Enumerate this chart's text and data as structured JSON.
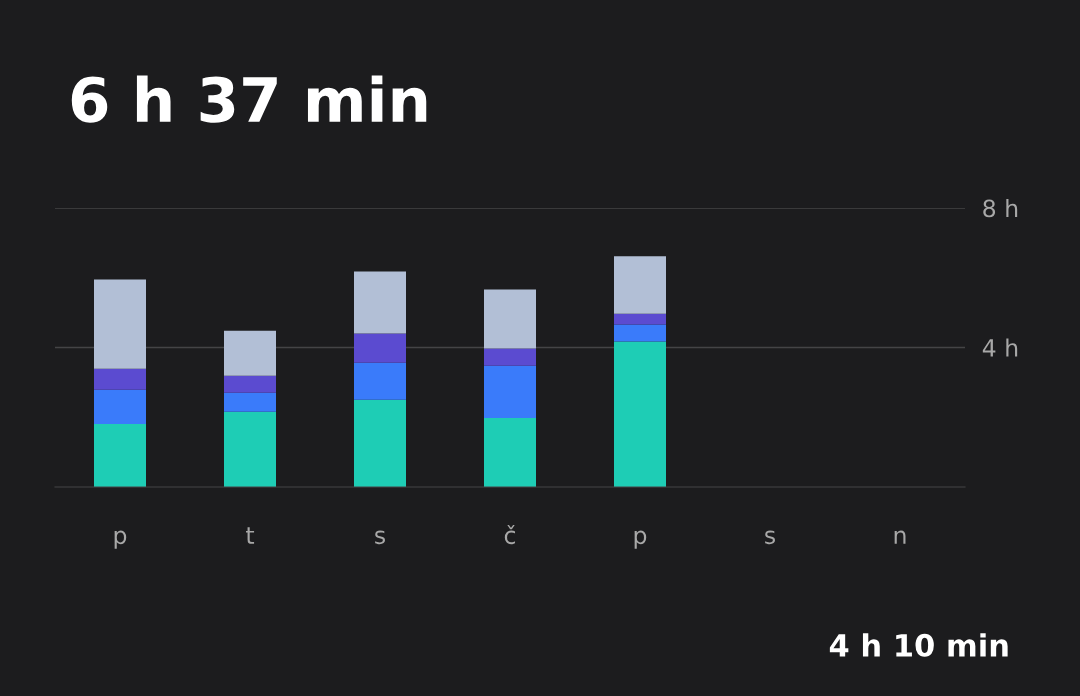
{
  "chart_data": {
    "type": "bar",
    "title": "6 h 37 min",
    "stacked": true,
    "categories": [
      "p",
      "t",
      "s",
      "č",
      "p",
      "s",
      "n"
    ],
    "series": [
      {
        "color": "#1ecdb5",
        "values": [
          1.81,
          2.16,
          2.5,
          1.98,
          4.17,
          null,
          null
        ]
      },
      {
        "color": "#3a7bfa",
        "values": [
          0.98,
          0.54,
          1.06,
          1.5,
          0.49,
          null,
          null
        ]
      },
      {
        "color": "#5b4bd0",
        "values": [
          0.6,
          0.49,
          0.84,
          0.49,
          0.31,
          null,
          null
        ]
      },
      {
        "color": "#b2bfd6",
        "values": [
          2.56,
          1.29,
          1.78,
          1.69,
          1.65,
          null,
          null
        ]
      }
    ],
    "ylim": [
      0,
      8
    ],
    "yticks": [
      {
        "value": 4,
        "label": "4 h"
      },
      {
        "value": 8,
        "label": "8 h"
      }
    ],
    "grid": "y",
    "annotations": [
      "4 h 10 min"
    ]
  }
}
